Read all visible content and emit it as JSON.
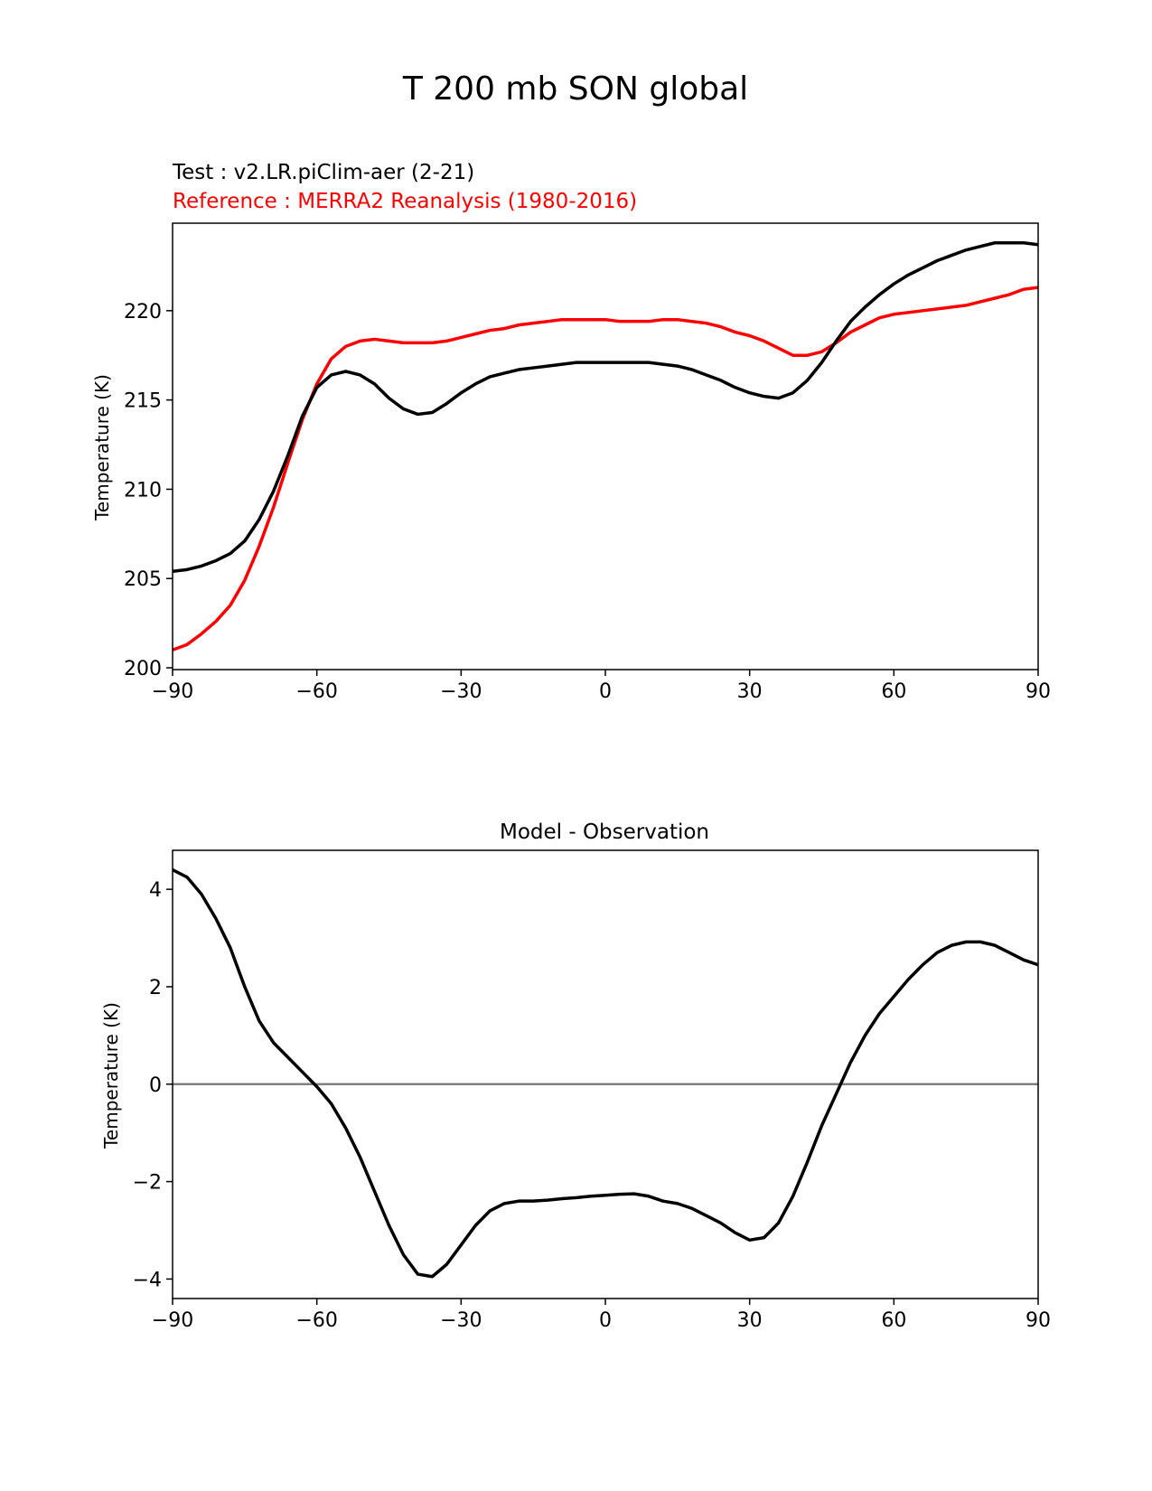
{
  "figure_title": "T 200 mb SON global",
  "colors": {
    "test": "#000000",
    "reference": "#ff0000",
    "zero_line": "#808080"
  },
  "chart_data": [
    {
      "type": "line",
      "test_label": "Test : v2.LR.piClim-aer (2-21)",
      "reference_label": "Reference : MERRA2 Reanalysis (1980-2016)",
      "title": "",
      "xlabel": "",
      "ylabel": "Temperature (K)",
      "xlim": [
        -90,
        90
      ],
      "ylim": [
        199.9,
        224.9
      ],
      "xticks": [
        -90,
        -60,
        -30,
        0,
        30,
        60,
        90
      ],
      "xtick_labels": [
        "−90",
        "−60",
        "−30",
        "0",
        "30",
        "60",
        "90"
      ],
      "yticks": [
        200,
        205,
        210,
        215,
        220
      ],
      "ytick_labels": [
        "200",
        "205",
        "210",
        "215",
        "220"
      ],
      "grid": false,
      "series": [
        {
          "role": "test",
          "x": [
            -90,
            -87,
            -84,
            -81,
            -78,
            -75,
            -72,
            -69,
            -66,
            -63,
            -60,
            -57,
            -54,
            -51,
            -48,
            -45,
            -42,
            -39,
            -36,
            -33,
            -30,
            -27,
            -24,
            -21,
            -18,
            -15,
            -12,
            -9,
            -6,
            -3,
            0,
            3,
            6,
            9,
            12,
            15,
            18,
            21,
            24,
            27,
            30,
            33,
            36,
            39,
            42,
            45,
            48,
            51,
            54,
            57,
            60,
            63,
            66,
            69,
            72,
            75,
            78,
            81,
            84,
            87,
            90
          ],
          "y": [
            205.4,
            205.5,
            205.7,
            206.0,
            206.4,
            207.1,
            208.3,
            209.9,
            211.9,
            214.1,
            215.7,
            216.4,
            216.6,
            216.4,
            215.9,
            215.1,
            214.5,
            214.2,
            214.3,
            214.8,
            215.4,
            215.9,
            216.3,
            216.5,
            216.7,
            216.8,
            216.9,
            217.0,
            217.1,
            217.1,
            217.1,
            217.1,
            217.1,
            217.1,
            217.0,
            216.9,
            216.7,
            216.4,
            216.1,
            215.7,
            215.4,
            215.2,
            215.1,
            215.4,
            216.1,
            217.1,
            218.3,
            219.4,
            220.2,
            220.9,
            221.5,
            222.0,
            222.4,
            222.8,
            223.1,
            223.4,
            223.6,
            223.8,
            223.8,
            223.8,
            223.7
          ]
        },
        {
          "role": "reference",
          "x": [
            -90,
            -87,
            -84,
            -81,
            -78,
            -75,
            -72,
            -69,
            -66,
            -63,
            -60,
            -57,
            -54,
            -51,
            -48,
            -45,
            -42,
            -39,
            -36,
            -33,
            -30,
            -27,
            -24,
            -21,
            -18,
            -15,
            -12,
            -9,
            -6,
            -3,
            0,
            3,
            6,
            9,
            12,
            15,
            18,
            21,
            24,
            27,
            30,
            33,
            36,
            39,
            42,
            45,
            48,
            51,
            54,
            57,
            60,
            63,
            66,
            69,
            72,
            75,
            78,
            81,
            84,
            87,
            90
          ],
          "y": [
            201.0,
            201.3,
            201.9,
            202.6,
            203.5,
            204.9,
            206.8,
            209.0,
            211.5,
            213.9,
            215.9,
            217.3,
            218.0,
            218.3,
            218.4,
            218.3,
            218.2,
            218.2,
            218.2,
            218.3,
            218.5,
            218.7,
            218.9,
            219.0,
            219.2,
            219.3,
            219.4,
            219.5,
            219.5,
            219.5,
            219.5,
            219.4,
            219.4,
            219.4,
            219.5,
            219.5,
            219.4,
            219.3,
            219.1,
            218.8,
            218.6,
            218.3,
            217.9,
            217.5,
            217.5,
            217.7,
            218.2,
            218.8,
            219.2,
            219.6,
            219.8,
            219.9,
            220.0,
            220.1,
            220.2,
            220.3,
            220.5,
            220.7,
            220.9,
            221.2,
            221.3
          ]
        }
      ]
    },
    {
      "type": "line",
      "title": "Model - Observation",
      "xlabel": "",
      "ylabel": "Temperature (K)",
      "xlim": [
        -90,
        90
      ],
      "ylim": [
        -4.4,
        4.8
      ],
      "xticks": [
        -90,
        -60,
        -30,
        0,
        30,
        60,
        90
      ],
      "xtick_labels": [
        "−90",
        "−60",
        "−30",
        "0",
        "30",
        "60",
        "90"
      ],
      "yticks": [
        -4,
        -2,
        0,
        2,
        4
      ],
      "ytick_labels": [
        "−4",
        "−2",
        "0",
        "2",
        "4"
      ],
      "grid": false,
      "hline": 0,
      "series": [
        {
          "role": "test",
          "x": [
            -90,
            -87,
            -84,
            -81,
            -78,
            -75,
            -72,
            -69,
            -66,
            -63,
            -60,
            -57,
            -54,
            -51,
            -48,
            -45,
            -42,
            -39,
            -36,
            -33,
            -30,
            -27,
            -24,
            -21,
            -18,
            -15,
            -12,
            -9,
            -6,
            -3,
            0,
            3,
            6,
            9,
            12,
            15,
            18,
            21,
            24,
            27,
            30,
            33,
            36,
            39,
            42,
            45,
            48,
            51,
            54,
            57,
            60,
            63,
            66,
            69,
            72,
            75,
            78,
            81,
            84,
            87,
            90
          ],
          "y": [
            4.4,
            4.25,
            3.9,
            3.4,
            2.8,
            2.0,
            1.3,
            0.85,
            0.55,
            0.25,
            -0.05,
            -0.4,
            -0.9,
            -1.5,
            -2.2,
            -2.9,
            -3.5,
            -3.9,
            -3.95,
            -3.7,
            -3.3,
            -2.9,
            -2.6,
            -2.45,
            -2.4,
            -2.4,
            -2.38,
            -2.35,
            -2.33,
            -2.3,
            -2.28,
            -2.26,
            -2.25,
            -2.3,
            -2.4,
            -2.45,
            -2.55,
            -2.7,
            -2.85,
            -3.05,
            -3.2,
            -3.15,
            -2.85,
            -2.3,
            -1.6,
            -0.85,
            -0.2,
            0.45,
            1.0,
            1.45,
            1.8,
            2.15,
            2.45,
            2.7,
            2.85,
            2.92,
            2.92,
            2.85,
            2.7,
            2.55,
            2.45
          ]
        }
      ]
    }
  ]
}
